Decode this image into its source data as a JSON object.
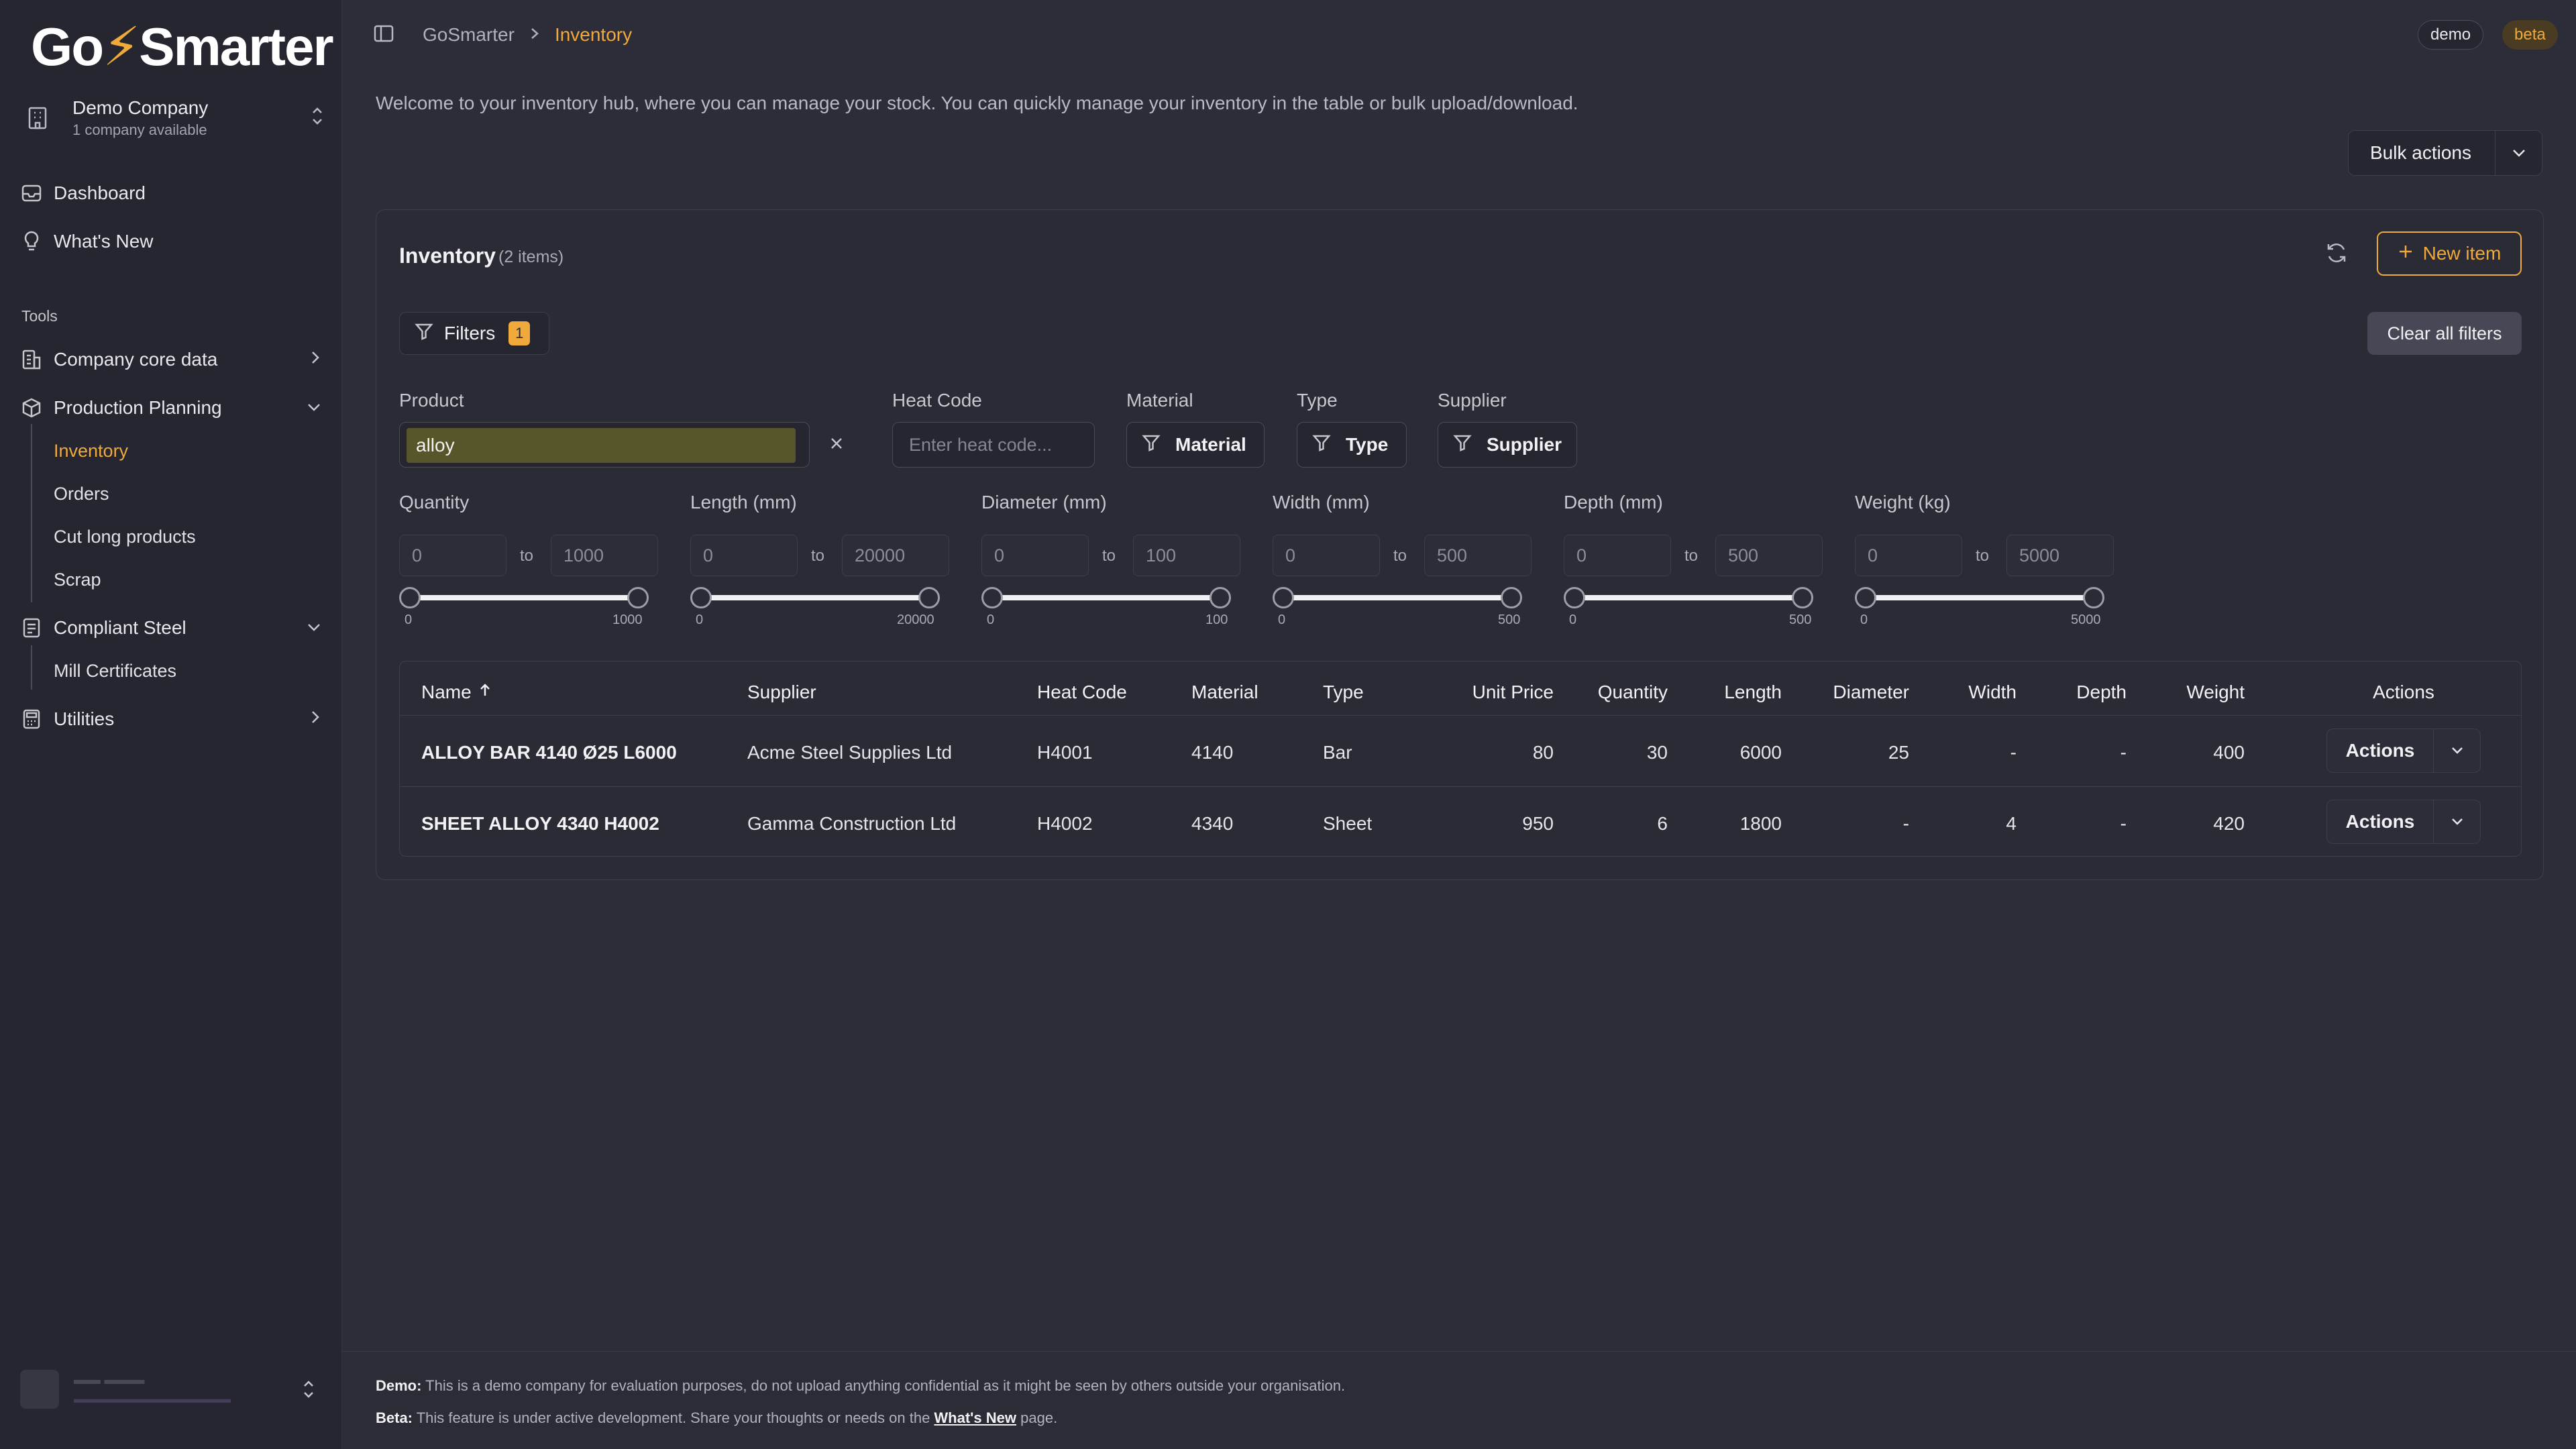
{
  "logo": {
    "text_pre": "Go",
    "text_post": "Smarter"
  },
  "company": {
    "name": "Demo Company",
    "sub": "1 company available"
  },
  "nav": {
    "dashboard": "Dashboard",
    "whats_new": "What's New",
    "tools_label": "Tools",
    "company_core_data": "Company core data",
    "production_planning": "Production Planning",
    "production_sub": [
      "Inventory",
      "Orders",
      "Cut long products",
      "Scrap"
    ],
    "compliant_steel": "Compliant Steel",
    "compliant_sub": [
      "Mill Certificates"
    ],
    "utilities": "Utilities"
  },
  "breadcrumb": {
    "root": "GoSmarter",
    "current": "Inventory"
  },
  "badges": {
    "demo": "demo",
    "beta": "beta"
  },
  "welcome": "Welcome to your inventory hub, where you can manage your stock. You can quickly manage your inventory in the table or bulk upload/download.",
  "bulk_actions": "Bulk actions",
  "card": {
    "title": "Inventory",
    "count": "(2 items)",
    "new_item": "New item",
    "filters_label": "Filters",
    "filters_badge": "1",
    "clear_all": "Clear all filters"
  },
  "filters": {
    "product_label": "Product",
    "product_value": "alloy",
    "heat_label": "Heat Code",
    "heat_placeholder": "Enter heat code...",
    "material_label": "Material",
    "material_btn": "Material",
    "type_label": "Type",
    "type_btn": "Type",
    "supplier_label": "Supplier",
    "supplier_btn": "Supplier",
    "to": "to",
    "ranges": [
      {
        "label": "Quantity",
        "min": "0",
        "max": "1000"
      },
      {
        "label": "Length (mm)",
        "min": "0",
        "max": "20000"
      },
      {
        "label": "Diameter (mm)",
        "min": "0",
        "max": "100"
      },
      {
        "label": "Width (mm)",
        "min": "0",
        "max": "500"
      },
      {
        "label": "Depth (mm)",
        "min": "0",
        "max": "500"
      },
      {
        "label": "Weight (kg)",
        "min": "0",
        "max": "5000"
      }
    ]
  },
  "table": {
    "headers": {
      "name": "Name",
      "supplier": "Supplier",
      "heat_code": "Heat Code",
      "material": "Material",
      "type": "Type",
      "unit_price": "Unit Price",
      "quantity": "Quantity",
      "length": "Length",
      "diameter": "Diameter",
      "width": "Width",
      "depth": "Depth",
      "weight": "Weight",
      "actions": "Actions"
    },
    "rows": [
      {
        "name": "ALLOY BAR 4140 Ø25 L6000",
        "supplier": "Acme Steel Supplies Ltd",
        "heat_code": "H4001",
        "material": "4140",
        "type": "Bar",
        "unit_price": "80",
        "quantity": "30",
        "length": "6000",
        "diameter": "25",
        "width": "-",
        "depth": "-",
        "weight": "400",
        "actions": "Actions"
      },
      {
        "name": "SHEET ALLOY 4340 H4002",
        "supplier": "Gamma Construction Ltd",
        "heat_code": "H4002",
        "material": "4340",
        "type": "Sheet",
        "unit_price": "950",
        "quantity": "6",
        "length": "1800",
        "diameter": "-",
        "width": "4",
        "depth": "-",
        "weight": "420",
        "actions": "Actions"
      }
    ]
  },
  "footer": {
    "demo_label": "Demo:",
    "demo_text": " This is a demo company for evaluation purposes, do not upload anything confidential as it might be seen by others outside your organisation.",
    "beta_label": "Beta:",
    "beta_text": " This feature is under active development. Share your thoughts or needs on the ",
    "beta_link": "What's New",
    "beta_tail": " page."
  },
  "colors": {
    "accent": "#f0a93b",
    "background": "#2c2d38",
    "sidebar": "#25262f"
  }
}
